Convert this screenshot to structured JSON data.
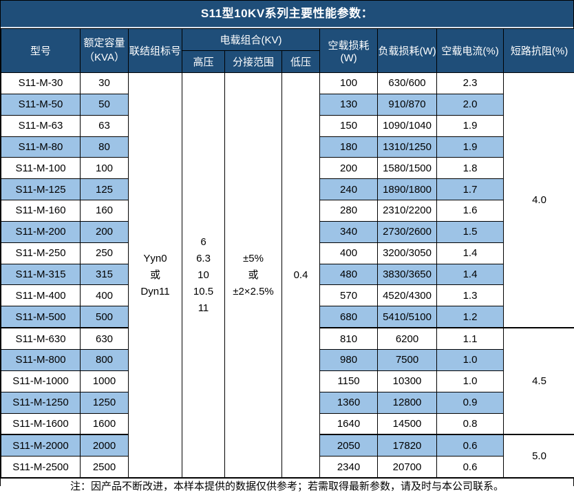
{
  "title": "S11型10KV系列主要性能参数：",
  "header": {
    "model": "型号",
    "capacity_line1": "额定容量",
    "capacity_line2": "（KVA）",
    "connection": "联结组标号",
    "voltage_group": "电载组合(KV)",
    "high_voltage": "高压",
    "tap_range": "分接范围",
    "low_voltage": "低压",
    "no_load_loss": "空载损耗(W)",
    "load_loss": "负载损耗(W)",
    "no_load_current": "空载电流(%)",
    "short_circuit_impedance": "短路抗阻(%)"
  },
  "merged_cells": {
    "connection": [
      "Yyn0",
      "或",
      "Dyn11"
    ],
    "high_voltage": [
      "6",
      "6.3",
      "10",
      "10.5",
      "11"
    ],
    "tap_range": [
      "±5%",
      "或",
      "±2×2.5%"
    ],
    "low_voltage": [
      "0.4"
    ]
  },
  "rows": [
    [
      "S11-M-30",
      "30",
      "100",
      "630/600",
      "2.3"
    ],
    [
      "S11-M-50",
      "50",
      "130",
      "910/870",
      "2.0"
    ],
    [
      "S11-M-63",
      "63",
      "150",
      "1090/1040",
      "1.9"
    ],
    [
      "S11-M-80",
      "80",
      "180",
      "1310/1250",
      "1.9"
    ],
    [
      "S11-M-100",
      "100",
      "200",
      "1580/1500",
      "1.8"
    ],
    [
      "S11-M-125",
      "125",
      "240",
      "1890/1800",
      "1.7"
    ],
    [
      "S11-M-160",
      "160",
      "280",
      "2310/2200",
      "1.6"
    ],
    [
      "S11-M-200",
      "200",
      "340",
      "2730/2600",
      "1.5"
    ],
    [
      "S11-M-250",
      "250",
      "400",
      "3200/3050",
      "1.4"
    ],
    [
      "S11-M-315",
      "315",
      "480",
      "3830/3650",
      "1.4"
    ],
    [
      "S11-M-400",
      "400",
      "570",
      "4520/4300",
      "1.3"
    ],
    [
      "S11-M-500",
      "500",
      "680",
      "5410/5100",
      "1.2"
    ],
    [
      "S11-M-630",
      "630",
      "810",
      "6200",
      "1.1"
    ],
    [
      "S11-M-800",
      "800",
      "980",
      "7500",
      "1.0"
    ],
    [
      "S11-M-1000",
      "1000",
      "1150",
      "10300",
      "1.0"
    ],
    [
      "S11-M-1250",
      "1250",
      "1360",
      "12800",
      "0.9"
    ],
    [
      "S11-M-1600",
      "1600",
      "1640",
      "14500",
      "0.8"
    ],
    [
      "S11-M-2000",
      "2000",
      "2050",
      "17820",
      "0.6"
    ],
    [
      "S11-M-2500",
      "2500",
      "2340",
      "20700",
      "0.6"
    ]
  ],
  "impedance_groups": [
    {
      "value": "4.0",
      "span": 12
    },
    {
      "value": "4.5",
      "span": 5
    },
    {
      "value": "5.0",
      "span": 2
    }
  ],
  "footer_note": "注：因产品不断改进，本样本提供的数据仅供参考；若需取得最新参数，请及时与本公司联系。",
  "colors": {
    "header_bg": "#1F4E79",
    "shaded_row_bg": "#9DC3E6",
    "border": "#000000"
  }
}
